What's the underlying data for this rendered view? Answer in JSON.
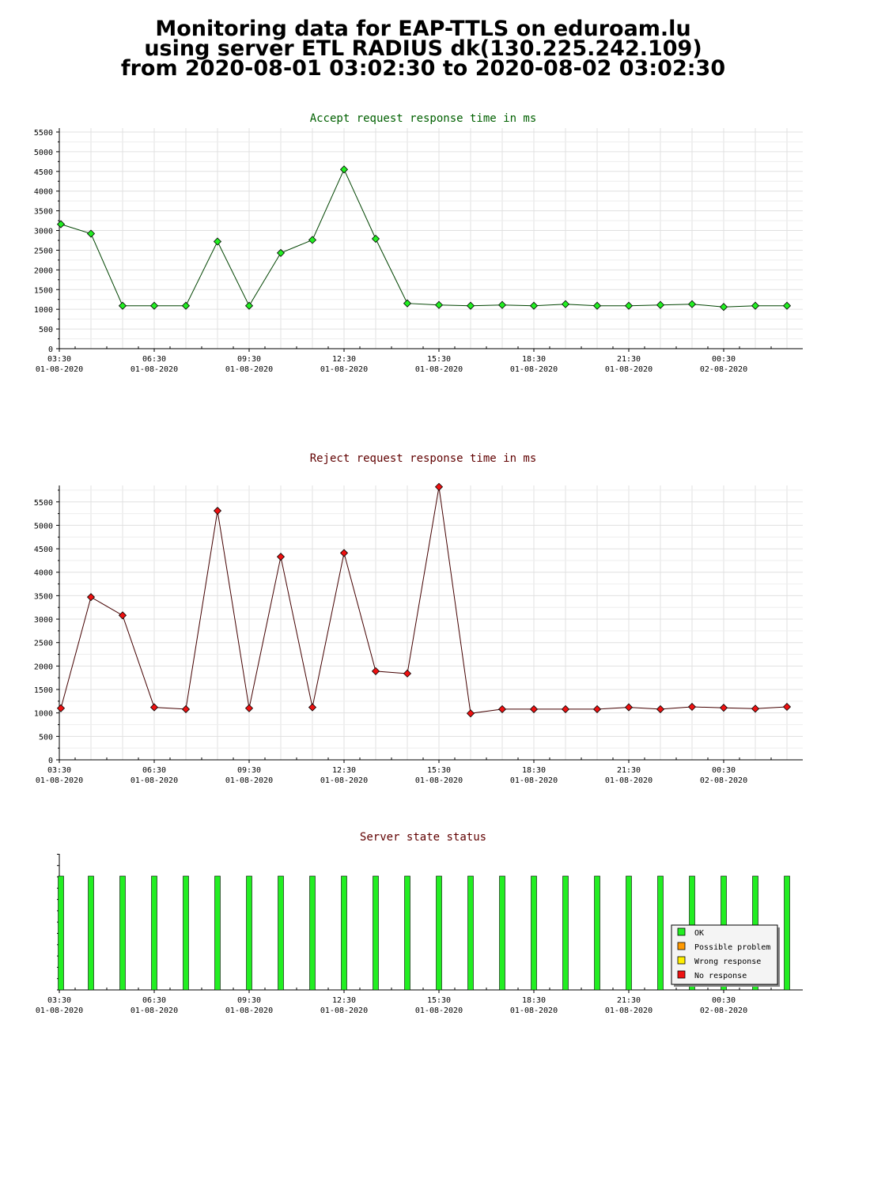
{
  "page": {
    "title_lines": [
      "Monitoring data for EAP-TTLS on eduroam.lu",
      "using server ETL RADIUS dk(130.225.242.109)",
      "from 2020-08-01 03:02:30 to 2020-08-02 03:02:30"
    ]
  },
  "colors": {
    "accept_title": "#006000",
    "reject_title": "#600000",
    "status_title": "#600000",
    "accept_marker": "#22ee22",
    "reject_marker": "#ee1111",
    "ok": "#22ee22",
    "possible_problem": "#ff9900",
    "wrong_response": "#ffee00",
    "no_response": "#ee1111",
    "grid": "#e0e0e0"
  },
  "x_axis": {
    "labels": [
      {
        "time": "03:30",
        "date": "01-08-2020",
        "hour": 3.5
      },
      {
        "time": "06:30",
        "date": "01-08-2020",
        "hour": 6.5
      },
      {
        "time": "09:30",
        "date": "01-08-2020",
        "hour": 9.5
      },
      {
        "time": "12:30",
        "date": "01-08-2020",
        "hour": 12.5
      },
      {
        "time": "15:30",
        "date": "01-08-2020",
        "hour": 15.5
      },
      {
        "time": "18:30",
        "date": "01-08-2020",
        "hour": 18.5
      },
      {
        "time": "21:30",
        "date": "01-08-2020",
        "hour": 21.5
      },
      {
        "time": "00:30",
        "date": "02-08-2020",
        "hour": 24.5
      }
    ]
  },
  "chart_data": [
    {
      "type": "line",
      "title": "Accept request response time in ms",
      "xlabel": "",
      "ylabel": "",
      "xlim": [
        3.5,
        27
      ],
      "ylim": [
        0,
        5600
      ],
      "yticks": [
        0,
        500,
        1000,
        1500,
        2000,
        2500,
        3000,
        3500,
        4000,
        4500,
        5000,
        5500
      ],
      "grid": true,
      "x": [
        3.55,
        4.5,
        5.5,
        6.5,
        7.5,
        8.5,
        9.5,
        10.5,
        11.5,
        12.5,
        13.5,
        14.5,
        15.5,
        16.5,
        17.5,
        18.5,
        19.5,
        20.5,
        21.5,
        22.5,
        23.5,
        24.5,
        25.5,
        26.5
      ],
      "series": [
        {
          "values": [
            3160,
            2920,
            1090,
            1090,
            1090,
            2720,
            1090,
            2430,
            2760,
            4550,
            2790,
            1150,
            1110,
            1090,
            1110,
            1090,
            1130,
            1090,
            1090,
            1110,
            1130,
            1060,
            1090,
            1090
          ]
        }
      ]
    },
    {
      "type": "line",
      "title": "Reject request response time in ms",
      "xlabel": "",
      "ylabel": "",
      "xlim": [
        3.5,
        27
      ],
      "ylim": [
        0,
        5850
      ],
      "yticks": [
        0,
        500,
        1000,
        1500,
        2000,
        2500,
        3000,
        3500,
        4000,
        4500,
        5000,
        5500
      ],
      "grid": true,
      "x": [
        3.55,
        4.5,
        5.5,
        6.5,
        7.5,
        8.5,
        9.5,
        10.5,
        11.5,
        12.5,
        13.5,
        14.5,
        15.5,
        16.5,
        17.5,
        18.5,
        19.5,
        20.5,
        21.5,
        22.5,
        23.5,
        24.5,
        25.5,
        26.5
      ],
      "series": [
        {
          "values": [
            1100,
            3470,
            3080,
            1120,
            1080,
            5310,
            1100,
            4330,
            1120,
            4410,
            1890,
            1840,
            5820,
            990,
            1080,
            1080,
            1080,
            1080,
            1120,
            1080,
            1130,
            1110,
            1090,
            1130
          ]
        }
      ]
    },
    {
      "type": "bar",
      "title": "Server state status",
      "xlabel": "",
      "ylabel": "",
      "xlim": [
        3.5,
        27
      ],
      "grid": false,
      "legend_position": "bottom-right",
      "legend": [
        "OK",
        "Possible problem",
        "Wrong response",
        "No response"
      ],
      "x": [
        3.55,
        4.5,
        5.5,
        6.5,
        7.5,
        8.5,
        9.5,
        10.5,
        11.5,
        12.5,
        13.5,
        14.5,
        15.5,
        16.5,
        17.5,
        18.5,
        19.5,
        20.5,
        21.5,
        22.5,
        23.5,
        24.5,
        25.5,
        26.5
      ],
      "states": [
        "OK",
        "OK",
        "OK",
        "OK",
        "OK",
        "OK",
        "OK",
        "OK",
        "OK",
        "OK",
        "OK",
        "OK",
        "OK",
        "OK",
        "OK",
        "OK",
        "OK",
        "OK",
        "OK",
        "OK",
        "OK",
        "OK",
        "OK",
        "OK"
      ]
    }
  ]
}
